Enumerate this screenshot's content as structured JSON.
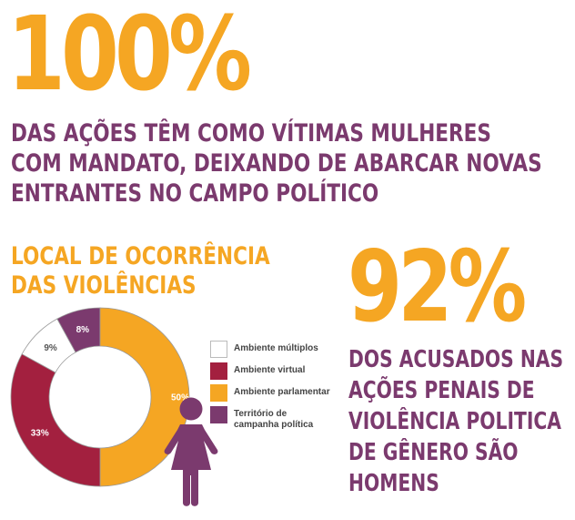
{
  "stat1": {
    "value": "100%",
    "lines": [
      "DAS AÇÕES TÊM COMO VÍTIMAS MULHERES",
      "COM MANDATO, DEIXANDO DE ABARCAR NOVAS",
      "ENTRANTES NO CAMPO POLÍTICO"
    ]
  },
  "stat2": {
    "value": "92%",
    "lines": [
      "DOS ACUSADOS NAS",
      "AÇÕES PENAIS DE",
      "VIOLÊNCIA POLITICA",
      "DE GÊNERO SÃO",
      "HOMENS"
    ]
  },
  "colors": {
    "orange": "#F5A623",
    "purple": "#7B3A6E",
    "crimson": "#A3203F",
    "white": "#FFFFFF"
  },
  "icons": {
    "woman": "woman-figure-icon"
  },
  "chart_data": {
    "type": "pie",
    "variant": "donut",
    "title_lines": [
      "LOCAL DE OCORRÊNCIA",
      "DAS VIOLÊNCIAS"
    ],
    "legend_position": "right",
    "series": [
      {
        "name": "Território de campanha política",
        "legend_lines": [
          "Território de",
          "campanha política"
        ],
        "value": 8,
        "label": "8%",
        "color": "#7B3A6E"
      },
      {
        "name": "Ambiente parlamentar",
        "legend_lines": [
          "Ambiente parlamentar"
        ],
        "value": 50,
        "label": "50%",
        "color": "#F5A623"
      },
      {
        "name": "Ambiente virtual",
        "legend_lines": [
          "Ambiente virtual"
        ],
        "value": 33,
        "label": "33%",
        "color": "#A3203F"
      },
      {
        "name": "Ambiente múltiplos",
        "legend_lines": [
          "Ambiente múltiplos"
        ],
        "value": 9,
        "label": "9%",
        "color": "#FFFFFF"
      }
    ],
    "legend_order": [
      "Ambiente múltiplos",
      "Ambiente virtual",
      "Ambiente parlamentar",
      "Território de campanha política"
    ]
  }
}
